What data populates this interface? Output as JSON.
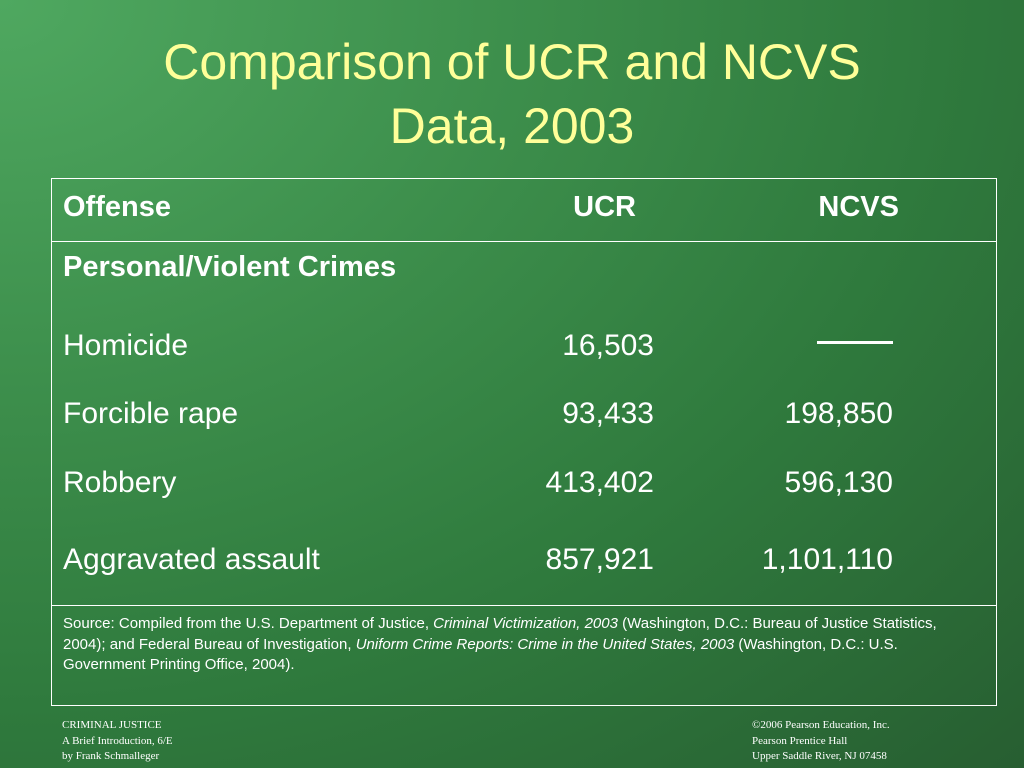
{
  "title": {
    "line1": "Comparison of UCR and NCVS",
    "line2": "Data, 2003"
  },
  "table": {
    "headers": {
      "offense": "Offense",
      "ucr": "UCR",
      "ncvs": "NCVS"
    },
    "section": "Personal/Violent Crimes",
    "rows": [
      {
        "offense": "Homicide",
        "ucr": "16,503",
        "ncvs": ""
      },
      {
        "offense": "Forcible rape",
        "ucr": "93,433",
        "ncvs": "198,850"
      },
      {
        "offense": "Robbery",
        "ucr": "413,402",
        "ncvs": "596,130"
      },
      {
        "offense": "Aggravated assault",
        "ucr": "857,921",
        "ncvs": "1,101,110"
      }
    ],
    "source": {
      "part1": "Source: Compiled from the U.S. Department of Justice, ",
      "italic1": "Criminal Victimization, 2003",
      "part2": " (Washington, D.C.: Bureau of Justice Statistics, 2004); and Federal Bureau of Investigation, ",
      "italic2": "Uniform Crime Reports: Crime in the United States, 2003",
      "part3": " (Washington, D.C.: U.S. Government Printing Office, 2004)."
    }
  },
  "footer": {
    "left": [
      "CRIMINAL JUSTICE",
      "A Brief Introduction, 6/E",
      "by Frank Schmalleger"
    ],
    "right": [
      "©2006 Pearson Education, Inc.",
      "Pearson Prentice Hall",
      "Upper Saddle River, NJ 07458"
    ]
  },
  "colors": {
    "title": "#ffff99",
    "text": "#ffffff",
    "background": "#3d8f4c"
  }
}
